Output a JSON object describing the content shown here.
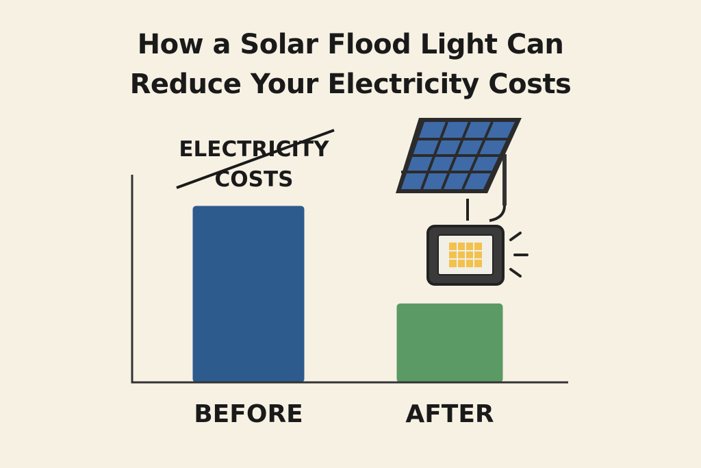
{
  "chart_data": {
    "type": "bar",
    "title": "How a Solar Flood Light Can Reduce Your Electricity Costs",
    "annotation": "ELECTRICITY COSTS",
    "categories": [
      "BEFORE",
      "AFTER"
    ],
    "series": [
      {
        "name": "BEFORE",
        "color": "#2e5b8d",
        "values": [
          85,
          null
        ]
      },
      {
        "name": "AFTER",
        "color": "#5b9a64",
        "values": [
          null,
          38
        ]
      }
    ],
    "ylim": [
      0,
      100
    ]
  }
}
